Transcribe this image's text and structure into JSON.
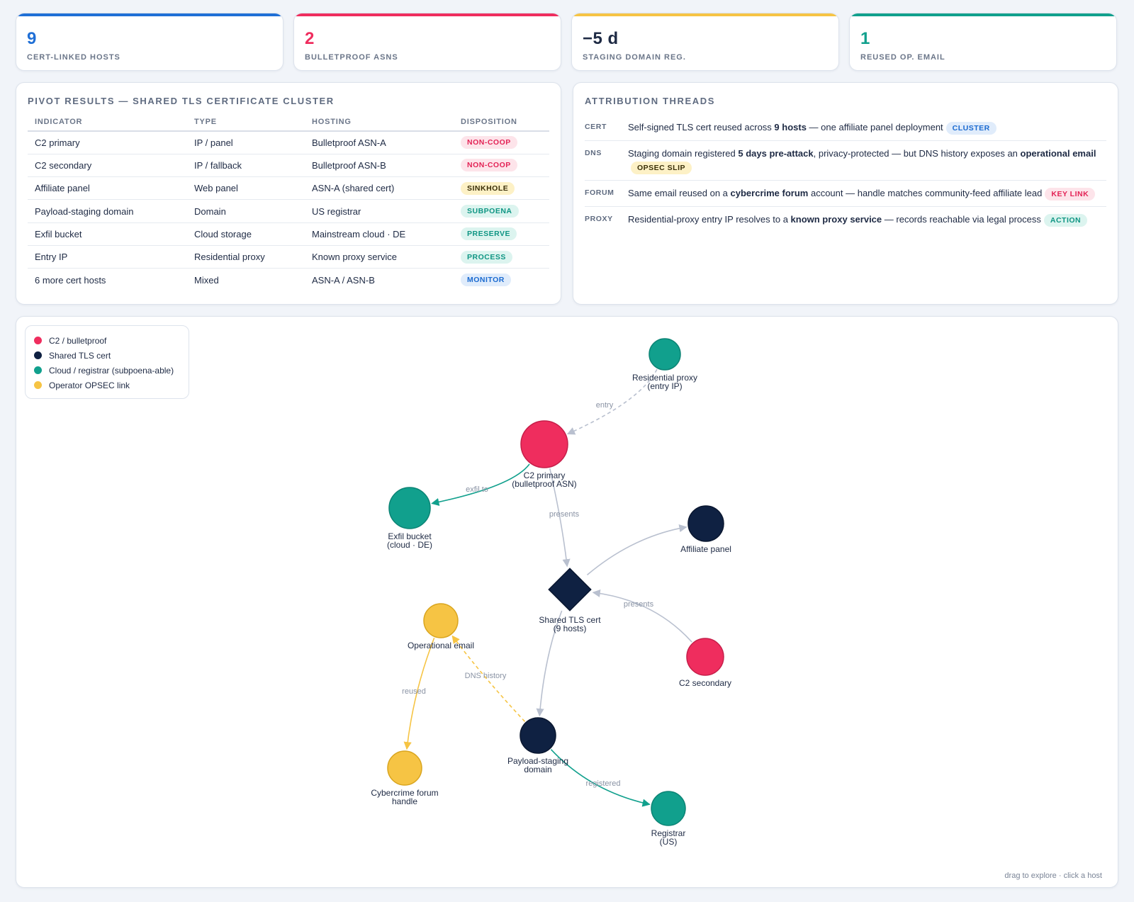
{
  "kpis": [
    {
      "value": "9",
      "label": "CERT-LINKED HOSTS",
      "color": "#1f6fd6"
    },
    {
      "value": "2",
      "label": "BULLETPROOF ASNS",
      "color": "#ef2d5e"
    },
    {
      "value": "−5 d",
      "label": "STAGING DOMAIN REG.",
      "color": "#1e2a44"
    },
    {
      "value": "1",
      "label": "REUSED OP. EMAIL",
      "color": "#11a08d"
    }
  ],
  "pivot": {
    "title": "PIVOT RESULTS — SHARED TLS CERTIFICATE CLUSTER",
    "columns": [
      "INDICATOR",
      "TYPE",
      "HOSTING",
      "DISPOSITION"
    ],
    "rows": [
      {
        "indicator": "C2 primary",
        "type": "IP / panel",
        "hosting": "Bulletproof ASN-A",
        "disposition": "NON-COOP",
        "tone": "red"
      },
      {
        "indicator": "C2 secondary",
        "type": "IP / fallback",
        "hosting": "Bulletproof ASN-B",
        "disposition": "NON-COOP",
        "tone": "red"
      },
      {
        "indicator": "Affiliate panel",
        "type": "Web panel",
        "hosting": "ASN-A (shared cert)",
        "disposition": "SINKHOLE",
        "tone": "amber"
      },
      {
        "indicator": "Payload-staging domain",
        "type": "Domain",
        "hosting": "US registrar",
        "disposition": "SUBPOENA",
        "tone": "teal"
      },
      {
        "indicator": "Exfil bucket",
        "type": "Cloud storage",
        "hosting": "Mainstream cloud · DE",
        "disposition": "PRESERVE",
        "tone": "teal"
      },
      {
        "indicator": "Entry IP",
        "type": "Residential proxy",
        "hosting": "Known proxy service",
        "disposition": "PROCESS",
        "tone": "teal"
      },
      {
        "indicator": "6 more cert hosts",
        "type": "Mixed",
        "hosting": "ASN-A / ASN-B",
        "disposition": "MONITOR",
        "tone": "blue"
      }
    ]
  },
  "attribution": {
    "title": "ATTRIBUTION THREADS",
    "threads": [
      {
        "tag": "CERT",
        "segments": [
          {
            "t": "Self-signed TLS cert reused across ",
            "b": false
          },
          {
            "t": "9 hosts",
            "b": true
          },
          {
            "t": " — one affiliate panel deployment",
            "b": false
          }
        ],
        "badge": "CLUSTER",
        "tone": "blue"
      },
      {
        "tag": "DNS",
        "segments": [
          {
            "t": "Staging domain registered ",
            "b": false
          },
          {
            "t": "5 days pre-attack",
            "b": true
          },
          {
            "t": ", privacy-protected — but DNS history exposes an ",
            "b": false
          },
          {
            "t": "operational email",
            "b": true
          }
        ],
        "badge": "OPSEC SLIP",
        "tone": "amber"
      },
      {
        "tag": "FORUM",
        "segments": [
          {
            "t": "Same email reused on a ",
            "b": false
          },
          {
            "t": "cybercrime forum",
            "b": true
          },
          {
            "t": " account — handle matches community-feed affiliate lead",
            "b": false
          }
        ],
        "badge": "KEY LINK",
        "tone": "red"
      },
      {
        "tag": "PROXY",
        "segments": [
          {
            "t": "Residential-proxy entry IP resolves to a ",
            "b": false
          },
          {
            "t": "known proxy service",
            "b": true
          },
          {
            "t": " — records reachable via legal process",
            "b": false
          }
        ],
        "badge": "ACTION",
        "tone": "teal"
      }
    ]
  },
  "legend": [
    {
      "label": "C2 / bulletproof",
      "color": "#ef2d5e"
    },
    {
      "label": "Shared TLS cert",
      "color": "#0f2142"
    },
    {
      "label": "Cloud / registrar (subpoena-able)",
      "color": "#11a08d"
    },
    {
      "label": "Operator OPSEC link",
      "color": "#f6c444"
    }
  ],
  "graph": {
    "nodes": [
      {
        "id": "proxy",
        "kind": "cloud",
        "lines": [
          "Residential proxy",
          "(entry IP)"
        ]
      },
      {
        "id": "c2p",
        "kind": "c2",
        "lines": [
          "C2 primary",
          "(bulletproof ASN)"
        ]
      },
      {
        "id": "exfil",
        "kind": "cloud",
        "lines": [
          "Exfil bucket",
          "(cloud · DE)"
        ]
      },
      {
        "id": "affiliate",
        "kind": "cert",
        "lines": [
          "Affiliate panel"
        ]
      },
      {
        "id": "cert",
        "kind": "cert-diamond",
        "lines": [
          "Shared TLS cert",
          "(9 hosts)"
        ]
      },
      {
        "id": "c2s",
        "kind": "c2",
        "lines": [
          "C2 secondary"
        ]
      },
      {
        "id": "email",
        "kind": "opsec",
        "lines": [
          "Operational email"
        ]
      },
      {
        "id": "staging",
        "kind": "cert",
        "lines": [
          "Payload-staging",
          "domain"
        ]
      },
      {
        "id": "forum",
        "kind": "opsec",
        "lines": [
          "Cybercrime forum",
          "handle"
        ]
      },
      {
        "id": "registrar",
        "kind": "cloud",
        "lines": [
          "Registrar",
          "(US)"
        ]
      }
    ],
    "edges": [
      {
        "from": "proxy",
        "to": "c2p",
        "label": "entry",
        "dashed": true,
        "color": "#b9c0cf"
      },
      {
        "from": "c2p",
        "to": "exfil",
        "label": "exfil to",
        "dashed": false,
        "color": "#11a08d"
      },
      {
        "from": "c2p",
        "to": "cert",
        "label": "presents",
        "dashed": false,
        "color": "#b9c0cf"
      },
      {
        "from": "cert",
        "to": "affiliate",
        "label": "",
        "dashed": false,
        "color": "#b9c0cf"
      },
      {
        "from": "c2s",
        "to": "cert",
        "label": "presents",
        "dashed": false,
        "color": "#b9c0cf"
      },
      {
        "from": "cert",
        "to": "staging",
        "label": "",
        "dashed": false,
        "color": "#b9c0cf"
      },
      {
        "from": "staging",
        "to": "email",
        "label": "DNS history",
        "dashed": true,
        "color": "#f6c444"
      },
      {
        "from": "email",
        "to": "forum",
        "label": "reused",
        "dashed": false,
        "color": "#f6c444"
      },
      {
        "from": "staging",
        "to": "registrar",
        "label": "registered",
        "dashed": false,
        "color": "#11a08d"
      }
    ],
    "hint": "drag to explore · click a host"
  },
  "colors": {
    "c2": "#ef2d5e",
    "cert": "#0f2142",
    "cloud": "#11a08d",
    "opsec": "#f6c444"
  }
}
